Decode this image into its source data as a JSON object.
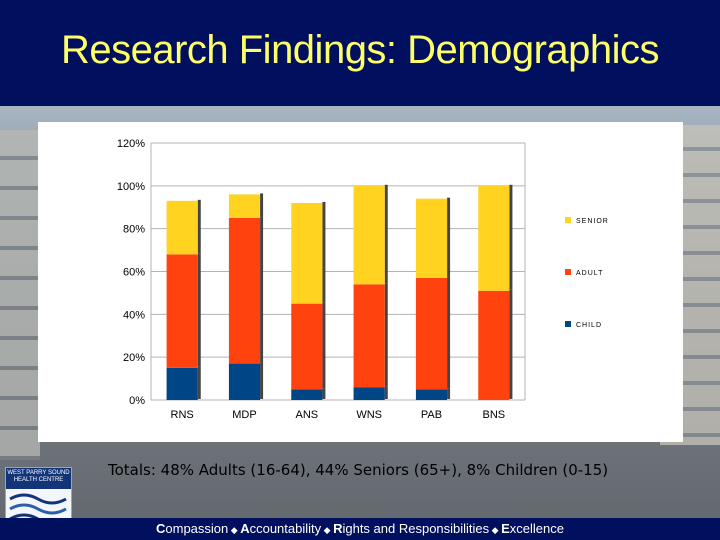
{
  "slide": {
    "title": "Research Findings: Demographics",
    "footnote": "Totals: 48% Adults (16-64), 44% Seniors (65+), 8% Children (0-15)",
    "footer_parts": [
      {
        "initial": "C",
        "rest": "ompassion"
      },
      {
        "initial": "A",
        "rest": "ccountability"
      },
      {
        "initial": "R",
        "rest": "ights and Responsibilities"
      },
      {
        "initial": "E",
        "rest": "xcellence"
      }
    ],
    "footer_separator": "◆",
    "logo": {
      "line1": "WEST PARRY SOUND",
      "line2": "HEALTH CENTRE",
      "icon": "wave-logo-icon"
    },
    "colors": {
      "header": "#000f5e",
      "title": "#ffff66",
      "senior": "#ffd320",
      "adult": "#ff420e",
      "child": "#004586"
    }
  },
  "chart_data": {
    "type": "bar",
    "stacked": true,
    "categories": [
      "RNS",
      "MDP",
      "ANS",
      "WNS",
      "PAB",
      "BNS"
    ],
    "series": [
      {
        "name": "CHILD",
        "color": "#004586",
        "values": [
          15,
          17,
          5,
          6,
          5,
          0
        ]
      },
      {
        "name": "ADULT",
        "color": "#ff420e",
        "values": [
          53,
          68,
          40,
          48,
          52,
          51
        ]
      },
      {
        "name": "SENIOR",
        "color": "#ffd320",
        "values": [
          25,
          11,
          47,
          46,
          37,
          49
        ]
      }
    ],
    "ylim": [
      0,
      120
    ],
    "yticks": [
      0,
      20,
      40,
      60,
      80,
      100,
      120
    ],
    "ytick_labels": [
      "0%",
      "20%",
      "40%",
      "60%",
      "80%",
      "100%",
      "120%"
    ],
    "legend": [
      "SENIOR",
      "ADULT",
      "CHILD"
    ],
    "legend_position": "right",
    "grid": true
  }
}
